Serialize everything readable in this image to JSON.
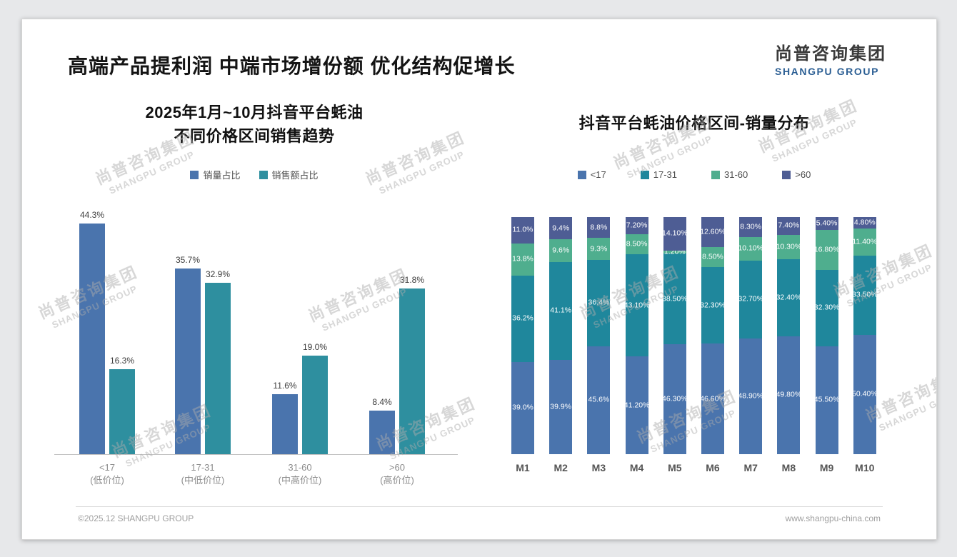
{
  "page": {
    "title": "高端产品提利润 中端市场增份额 优化结构促增长",
    "logo": {
      "cn": "尚普咨询集团",
      "en": "SHANGPU GROUP"
    },
    "watermark": {
      "cn": "尚普咨询集团",
      "en": "SHANGPU GROUP"
    },
    "footer": {
      "left": "©2025.12 SHANGPU GROUP",
      "right": "www.shangpu-china.com"
    }
  },
  "colors": {
    "bar_blue": "#4a74ad",
    "bar_teal": "#2e8f9f",
    "stack_blue": "#4a74ad",
    "stack_teal": "#1f879c",
    "stack_green": "#4fae8e",
    "stack_navy": "#4e5d94",
    "logo_blue": "#2c5f94"
  },
  "chart_data": [
    {
      "type": "bar",
      "title": "2025年1月~10月抖音平台蚝油 不同价格区间销售趋势",
      "title_lines": [
        "2025年1月~10月抖音平台蚝油",
        "不同价格区间销售趋势"
      ],
      "legend_position": "top",
      "grid": false,
      "categories": [
        "<17",
        "17-31",
        "31-60",
        ">60"
      ],
      "category_sublabels": [
        "(低价位)",
        "(中低价位)",
        "(中高价位)",
        "(高价位)"
      ],
      "ylim": [
        0,
        46
      ],
      "series": [
        {
          "name": "销量占比",
          "color": "#4a74ad",
          "values": [
            44.3,
            35.7,
            11.6,
            8.4
          ],
          "labels": [
            "44.3%",
            "35.7%",
            "11.6%",
            "8.4%"
          ]
        },
        {
          "name": "销售额占比",
          "color": "#2e8f9f",
          "values": [
            16.3,
            32.9,
            19.0,
            31.8
          ],
          "labels": [
            "16.3%",
            "32.9%",
            "19.0%",
            "31.8%"
          ]
        }
      ]
    },
    {
      "type": "stacked-bar",
      "title": "抖音平台蚝油价格区间-销量分布",
      "legend_position": "top",
      "grid": false,
      "categories": [
        "M1",
        "M2",
        "M3",
        "M4",
        "M5",
        "M6",
        "M7",
        "M8",
        "M9",
        "M10"
      ],
      "ylim": [
        0,
        100
      ],
      "series": [
        {
          "name": "<17",
          "color": "#4a74ad",
          "values": [
            39.0,
            39.9,
            45.6,
            41.2,
            46.3,
            46.6,
            48.9,
            49.8,
            45.5,
            50.4
          ],
          "labels": [
            "39.0%",
            "39.9%",
            "45.6%",
            "41.20%",
            "46.30%",
            "46.60%",
            "48.90%",
            "49.80%",
            "45.50%",
            "50.40%"
          ]
        },
        {
          "name": "17-31",
          "color": "#1f879c",
          "values": [
            36.2,
            41.1,
            36.4,
            43.1,
            38.5,
            32.3,
            32.7,
            32.4,
            32.3,
            33.5
          ],
          "labels": [
            "36.2%",
            "41.1%",
            "36.4%",
            "43.10%",
            "38.50%",
            "32.30%",
            "32.70%",
            "32.40%",
            "32.30%",
            "33.50%"
          ]
        },
        {
          "name": "31-60",
          "color": "#4fae8e",
          "values": [
            13.8,
            9.6,
            9.3,
            8.5,
            1.2,
            8.5,
            10.1,
            10.3,
            16.8,
            11.4
          ],
          "labels": [
            "13.8%",
            "9.6%",
            "9.3%",
            "8.50%",
            "1.20%",
            "8.50%",
            "10.10%",
            "10.30%",
            "16.80%",
            "11.40%"
          ]
        },
        {
          "name": ">60",
          "color": "#4e5d94",
          "values": [
            11.0,
            9.4,
            8.8,
            7.2,
            14.1,
            12.6,
            8.3,
            7.4,
            5.4,
            4.8
          ],
          "labels": [
            "11.0%",
            "9.4%",
            "8.8%",
            "7.20%",
            "14.10%",
            "12.60%",
            "8.30%",
            "7.40%",
            "5.40%",
            "4.80%"
          ]
        }
      ]
    }
  ]
}
